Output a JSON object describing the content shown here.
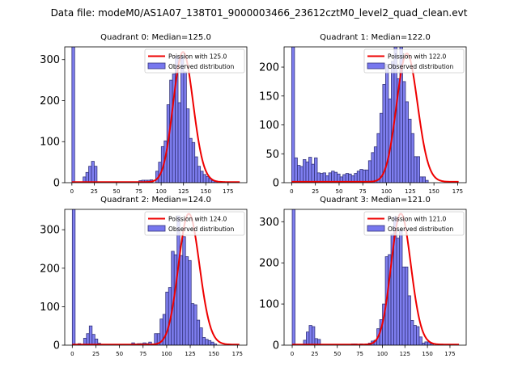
{
  "suptitle": "Data file: modeM0/AS1A07_138T01_9000003466_23612cztM0_level2_quad_clean.evt",
  "colors": {
    "bar_fill": "#7777ee",
    "bar_edge": "#33337a",
    "line": "#ee0000"
  },
  "chart_data": [
    {
      "type": "bar",
      "title": "Quadrant 0: Median=125.0",
      "legend": [
        "Poission with 125.0",
        "Observed distribution"
      ],
      "legend_position": "top-right",
      "median": 125.0,
      "xlim": [
        -8,
        196
      ],
      "ylim": [
        0,
        331
      ],
      "xticks": [
        0,
        25,
        50,
        75,
        100,
        125,
        150,
        175
      ],
      "yticks": [
        0,
        100,
        200,
        300
      ],
      "bin_width": 3.13,
      "bin_start": 0,
      "values": [
        420,
        0,
        0,
        0,
        14,
        25,
        40,
        52,
        40,
        0,
        0,
        0,
        0,
        0,
        0,
        0,
        0,
        0,
        0,
        0,
        0,
        0,
        0,
        0,
        5,
        6,
        6,
        6,
        7,
        0,
        28,
        50,
        88,
        102,
        190,
        250,
        265,
        308,
        195,
        308,
        270,
        180,
        108,
        98,
        63,
        40,
        28,
        20,
        15,
        10,
        5,
        3,
        0,
        0,
        0,
        0,
        0,
        0,
        0,
        0
      ],
      "poisson_peak": 317
    },
    {
      "type": "bar",
      "title": "Quadrant 1: Median=122.0",
      "legend": [
        "Poission with 122.0",
        "Observed distribution"
      ],
      "legend_position": "top-right",
      "median": 122.0,
      "xlim": [
        -8,
        184
      ],
      "ylim": [
        0,
        235
      ],
      "xticks": [
        0,
        25,
        50,
        75,
        100,
        125,
        150,
        175
      ],
      "yticks": [
        0,
        50,
        100,
        150,
        200
      ],
      "bin_width": 3.0,
      "bin_start": 0,
      "values": [
        350,
        43,
        30,
        28,
        40,
        36,
        44,
        32,
        43,
        17,
        16,
        17,
        12,
        17,
        20,
        18,
        15,
        10,
        14,
        16,
        15,
        12,
        16,
        20,
        23,
        22,
        22,
        38,
        52,
        62,
        85,
        120,
        170,
        205,
        145,
        210,
        250,
        180,
        235,
        175,
        140,
        110,
        85,
        45,
        45,
        10,
        10,
        4,
        0,
        0,
        0,
        0,
        0,
        0,
        0,
        0,
        0,
        0
      ],
      "poisson_peak": 222
    },
    {
      "type": "bar",
      "title": "Quadrant 2: Median=124.0",
      "legend": [
        "Poission with 124.0",
        "Observed distribution"
      ],
      "legend_position": "top-right",
      "median": 124.0,
      "xlim": [
        -8,
        185
      ],
      "ylim": [
        0,
        353
      ],
      "xticks": [
        0,
        25,
        50,
        75,
        100,
        125,
        150,
        175
      ],
      "yticks": [
        0,
        100,
        200,
        300
      ],
      "bin_width": 3.0,
      "bin_start": 0,
      "values": [
        420,
        0,
        4,
        0,
        18,
        30,
        50,
        28,
        16,
        5,
        0,
        0,
        0,
        0,
        0,
        0,
        0,
        0,
        0,
        0,
        0,
        6,
        3,
        4,
        4,
        6,
        4,
        8,
        3,
        30,
        30,
        68,
        80,
        138,
        150,
        244,
        235,
        336,
        233,
        282,
        230,
        220,
        108,
        105,
        65,
        45,
        20,
        15,
        12,
        8,
        3,
        0,
        0,
        0,
        0,
        0,
        0,
        0
      ],
      "poisson_peak": 340
    },
    {
      "type": "bar",
      "title": "Quadrant 3: Median=121.0",
      "legend": [
        "Poission with 121.0",
        "Observed distribution"
      ],
      "legend_position": "top-right",
      "median": 121.0,
      "xlim": [
        -9,
        193
      ],
      "ylim": [
        0,
        330
      ],
      "xticks": [
        0,
        25,
        50,
        75,
        100,
        125,
        150,
        175
      ],
      "yticks": [
        0,
        100,
        200,
        300
      ],
      "bin_width": 3.13,
      "bin_start": 0,
      "values": [
        360,
        0,
        0,
        0,
        12,
        32,
        48,
        45,
        16,
        14,
        0,
        0,
        0,
        0,
        0,
        0,
        0,
        0,
        0,
        0,
        0,
        3,
        3,
        0,
        3,
        0,
        3,
        5,
        10,
        12,
        40,
        62,
        100,
        215,
        220,
        270,
        312,
        260,
        280,
        190,
        190,
        120,
        60,
        48,
        45,
        20,
        5,
        8,
        8,
        3,
        0,
        0,
        0,
        0,
        0,
        0,
        0,
        0,
        0,
        0
      ],
      "poisson_peak": 318
    }
  ]
}
